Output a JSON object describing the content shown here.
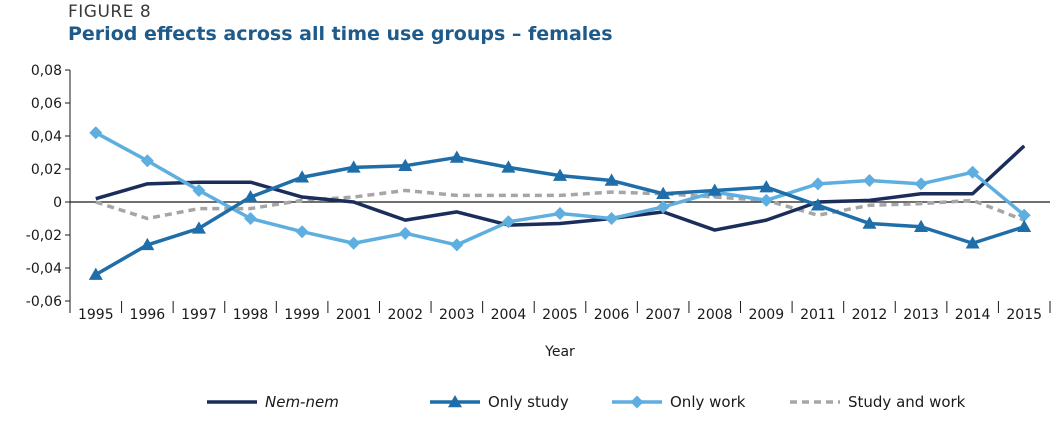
{
  "figure_label": "FIGURE 8",
  "chart_data": {
    "type": "line",
    "title": "Period effects across all time use groups – females",
    "xlabel": "Year",
    "ylabel": "",
    "ylim": [
      -0.06,
      0.08
    ],
    "yticks": [
      "0,08",
      "0,06",
      "0,04",
      "0,02",
      "0",
      "-0,02",
      "-0,04",
      "-0,06"
    ],
    "ytick_values": [
      0.08,
      0.06,
      0.04,
      0.02,
      0,
      -0.02,
      -0.04,
      -0.06
    ],
    "categories": [
      "1995",
      "1996",
      "1997",
      "1998",
      "1999",
      "2001",
      "2002",
      "2003",
      "2004",
      "2005",
      "2006",
      "2007",
      "2008",
      "2009",
      "2011",
      "2012",
      "2013",
      "2014",
      "2015"
    ],
    "grid": false,
    "legend": "bottom",
    "series": [
      {
        "name": "Nem-nem",
        "color": "#1b2d5a",
        "style": "solid",
        "marker": "none",
        "italic": true,
        "values": [
          0.002,
          0.011,
          0.012,
          0.012,
          0.003,
          0.0,
          -0.011,
          -0.006,
          -0.014,
          -0.013,
          -0.01,
          -0.006,
          -0.017,
          -0.011,
          0.0,
          0.001,
          0.005,
          0.005,
          0.034
        ]
      },
      {
        "name": "Only study",
        "color": "#1f6ea9",
        "style": "solid",
        "marker": "triangle",
        "italic": false,
        "values": [
          -0.044,
          -0.026,
          -0.016,
          0.003,
          0.015,
          0.021,
          0.022,
          0.027,
          0.021,
          0.016,
          0.013,
          0.005,
          0.007,
          0.009,
          -0.002,
          -0.013,
          -0.015,
          -0.025,
          -0.015
        ]
      },
      {
        "name": "Only work",
        "color": "#5eaee0",
        "style": "solid",
        "marker": "diamond",
        "italic": false,
        "values": [
          0.042,
          0.025,
          0.007,
          -0.01,
          -0.018,
          -0.025,
          -0.019,
          -0.026,
          -0.012,
          -0.007,
          -0.01,
          -0.003,
          0.006,
          0.001,
          0.011,
          0.013,
          0.011,
          0.018,
          -0.008
        ]
      },
      {
        "name": "Study and work",
        "color": "#a6a6a6",
        "style": "dashed",
        "marker": "none",
        "italic": false,
        "values": [
          0.0,
          -0.01,
          -0.004,
          -0.004,
          0.001,
          0.003,
          0.007,
          0.004,
          0.004,
          0.004,
          0.006,
          0.005,
          0.003,
          0.001,
          -0.008,
          -0.002,
          -0.001,
          0.001,
          -0.011
        ]
      }
    ]
  }
}
